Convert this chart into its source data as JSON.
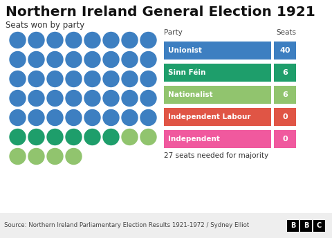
{
  "title": "Northern Ireland General Election 1921",
  "subtitle": "Seats won by party",
  "source": "Source: Northern Ireland Parliamentary Election Results 1921-1972 / Sydney Elliot",
  "parties": [
    "Unionist",
    "Sinn Féin",
    "Nationalist",
    "Independent Labour",
    "Independent"
  ],
  "seats": [
    40,
    6,
    6,
    0,
    0
  ],
  "colors": [
    "#3d7fc1",
    "#1e9e6b",
    "#91c46e",
    "#e05545",
    "#f0599e"
  ],
  "dot_colors_order": [
    "#3d7fc1",
    "#3d7fc1",
    "#3d7fc1",
    "#3d7fc1",
    "#3d7fc1",
    "#3d7fc1",
    "#3d7fc1",
    "#3d7fc1",
    "#3d7fc1",
    "#3d7fc1",
    "#3d7fc1",
    "#3d7fc1",
    "#3d7fc1",
    "#3d7fc1",
    "#3d7fc1",
    "#3d7fc1",
    "#3d7fc1",
    "#3d7fc1",
    "#3d7fc1",
    "#3d7fc1",
    "#3d7fc1",
    "#3d7fc1",
    "#3d7fc1",
    "#3d7fc1",
    "#3d7fc1",
    "#3d7fc1",
    "#3d7fc1",
    "#3d7fc1",
    "#3d7fc1",
    "#3d7fc1",
    "#3d7fc1",
    "#3d7fc1",
    "#3d7fc1",
    "#3d7fc1",
    "#3d7fc1",
    "#3d7fc1",
    "#3d7fc1",
    "#3d7fc1",
    "#3d7fc1",
    "#3d7fc1",
    "#1e9e6b",
    "#1e9e6b",
    "#1e9e6b",
    "#1e9e6b",
    "#1e9e6b",
    "#1e9e6b",
    "#91c46e",
    "#91c46e",
    "#91c46e",
    "#91c46e",
    "#91c46e",
    "#91c46e"
  ],
  "n_cols": 8,
  "majority_text": "27 seats needed for majority",
  "bg_color": "#ffffff",
  "footer_bg": "#eeeeee"
}
